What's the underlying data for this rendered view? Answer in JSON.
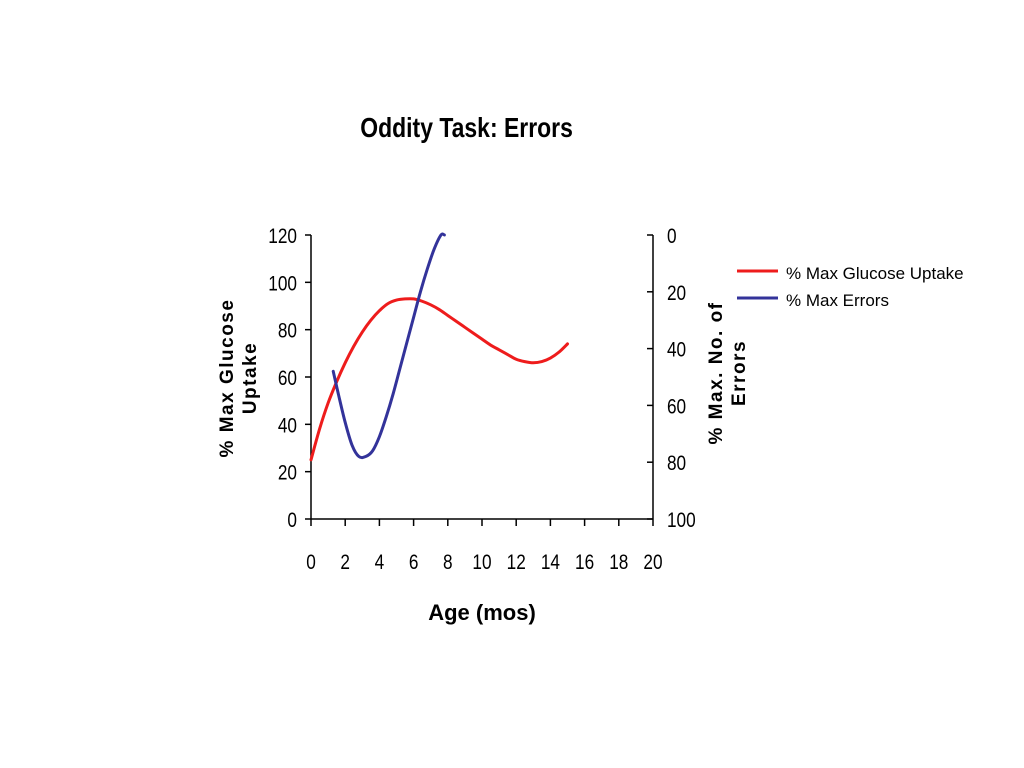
{
  "chart_data": {
    "type": "line",
    "title": "Oddity Task: Errors",
    "xlabel": "Age (mos)",
    "ylabel_left": "%  Max Glucose Uptake",
    "ylabel_left_lines": [
      "%  Max Glucose",
      "Uptake"
    ],
    "ylabel_right": "% Max. No. of Errors",
    "ylabel_right_lines": [
      "% Max. No. of",
      "Errors"
    ],
    "xlim": [
      0,
      20
    ],
    "ylim_left": [
      0,
      120
    ],
    "ylim_right": [
      100,
      0
    ],
    "x_ticks": [
      "0",
      "2",
      "4",
      "6",
      "8",
      "10",
      "12",
      "14",
      "16",
      "18",
      "20"
    ],
    "y_ticks_left": [
      "0",
      "20",
      "40",
      "60",
      "80",
      "100",
      "120"
    ],
    "y_ticks_right": [
      "100",
      "80",
      "60",
      "40",
      "20",
      "0"
    ],
    "grid": false,
    "legend_position": "right",
    "series": [
      {
        "name": "% Max Glucose Uptake",
        "axis": "left",
        "color": "#ee1c1c",
        "x": [
          0,
          0.5,
          1,
          1.5,
          2,
          2.5,
          3,
          3.5,
          4,
          4.5,
          5,
          5.5,
          6,
          6.5,
          7,
          7.5,
          8,
          8.5,
          9,
          9.5,
          10,
          10.5,
          11,
          11.5,
          12,
          12.5,
          13,
          13.5,
          14,
          14.5,
          15
        ],
        "y": [
          25,
          38,
          49,
          58,
          66,
          73,
          79,
          84,
          88,
          91,
          92.5,
          93,
          93,
          92,
          90.5,
          88.5,
          86,
          83.5,
          81,
          78.5,
          76,
          73.5,
          71.5,
          69.5,
          67.5,
          66.5,
          66,
          66.5,
          68,
          70.5,
          74
        ]
      },
      {
        "name": "% Max Errors",
        "axis": "right",
        "color": "#33339a",
        "x": [
          1.3,
          1.6,
          2,
          2.4,
          2.8,
          3.2,
          3.6,
          4,
          4.4,
          4.8,
          5.2,
          5.6,
          6,
          6.4,
          6.8,
          7.2,
          7.6,
          7.8
        ],
        "y": [
          48,
          56,
          66,
          74,
          78,
          78,
          76,
          71,
          64,
          56,
          47,
          38,
          29,
          20,
          12,
          5,
          0,
          0
        ]
      }
    ]
  }
}
